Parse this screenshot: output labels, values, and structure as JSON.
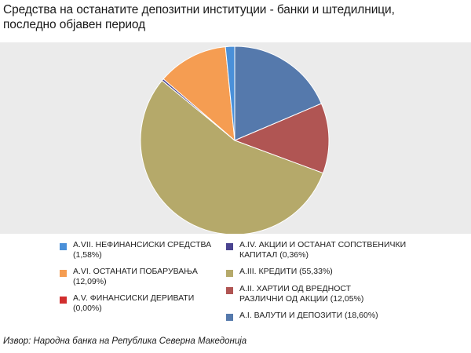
{
  "chart_data": {
    "type": "pie",
    "title": "Средства на останатите депозитни институции - банки и штедилници,\nпоследно  објавен период",
    "slices": [
      {
        "label": "A.I. ВАЛУТИ И ДЕПОЗИТИ (18,60%)",
        "value": 18.6,
        "color": "#5579ac"
      },
      {
        "label": "A.II. ХАРТИИ ОД ВРЕДНОСТ РАЗЛИЧНИ ОД АКЦИИ (12,05%)",
        "value": 12.05,
        "color": "#b05553"
      },
      {
        "label": "A.III. КРЕДИТИ (55,33%)",
        "value": 55.33,
        "color": "#b5a96a"
      },
      {
        "label": "A.IV. АКЦИИ И ОСТАНАТ СОПСТВЕНИЧКИ КАПИТАЛ (0,36%)",
        "value": 0.36,
        "color": "#4a4390"
      },
      {
        "label": "A.V. ФИНАНСИСКИ ДЕРИВАТИ (0,00%)",
        "value": 0.0,
        "color": "#d12e2e"
      },
      {
        "label": "A.VI. ОСТАНАТИ ПОБАРУВАЊА (12,09%)",
        "value": 12.09,
        "color": "#f59d52"
      },
      {
        "label": "A.VII. НЕФИНАНСИСКИ СРЕДСТВА (1,58%)",
        "value": 1.58,
        "color": "#4a90d9"
      }
    ],
    "legend": [
      {
        "text": "A.VII. НЕФИНАНСИСКИ СРЕДСТВА\n(1,58%)",
        "color": "#4a90d9"
      },
      {
        "text": "A.IV. АКЦИИ И ОСТАНАТ СОПСТВЕНИЧКИ\nКАПИТАЛ (0,36%)",
        "color": "#4a4390"
      },
      {
        "text": "A.VI. ОСТАНАТИ ПОБАРУВАЊА\n(12,09%)",
        "color": "#f59d52"
      },
      {
        "text": "A.III. КРЕДИТИ (55,33%)",
        "color": "#b5a96a"
      },
      {
        "text": "A.V. ФИНАНСИСКИ ДЕРИВАТИ\n(0,00%)",
        "color": "#d12e2e"
      },
      {
        "text": "A.II. ХАРТИИ ОД ВРЕДНОСТ\nРАЗЛИЧНИ ОД АКЦИИ (12,05%)",
        "color": "#b05553"
      },
      {
        "text": "A.I. ВАЛУТИ И ДЕПОЗИТИ (18,60%)",
        "color": "#5579ac"
      }
    ],
    "legend_placement": "bottom"
  },
  "source": "Извор: Народна банка на Република Северна Македонија"
}
